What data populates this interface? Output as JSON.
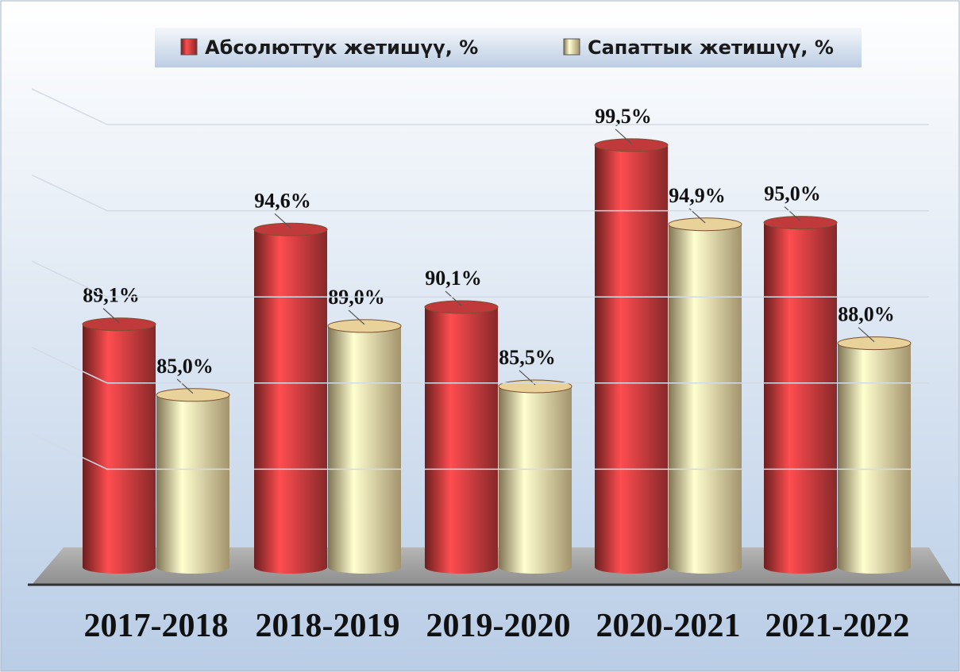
{
  "chart_data": {
    "type": "bar",
    "style": "3d-cylinder",
    "categories": [
      "2017-2018",
      "2018-2019",
      "2019-2020",
      "2020-2021",
      "2021-2022"
    ],
    "series": [
      {
        "name": "Абсолюттук жетишүү, %",
        "color": "#c0393b",
        "values": [
          89.1,
          94.6,
          90.1,
          99.5,
          95.0
        ],
        "value_labels": [
          "89,1%",
          "94,6%",
          "90,1%",
          "99,5%",
          "95,0%"
        ]
      },
      {
        "name": "Сапаттык жетишүү, %",
        "color": "#e8d29a",
        "values": [
          85.0,
          89.0,
          85.5,
          94.9,
          88.0
        ],
        "value_labels": [
          "85,0%",
          "89,0%",
          "85,5%",
          "94,9%",
          "88,0%"
        ]
      }
    ],
    "ylim": [
      75,
      100
    ],
    "yticks": [
      80,
      85,
      90,
      95,
      100
    ],
    "grid": true,
    "legend": "top"
  }
}
